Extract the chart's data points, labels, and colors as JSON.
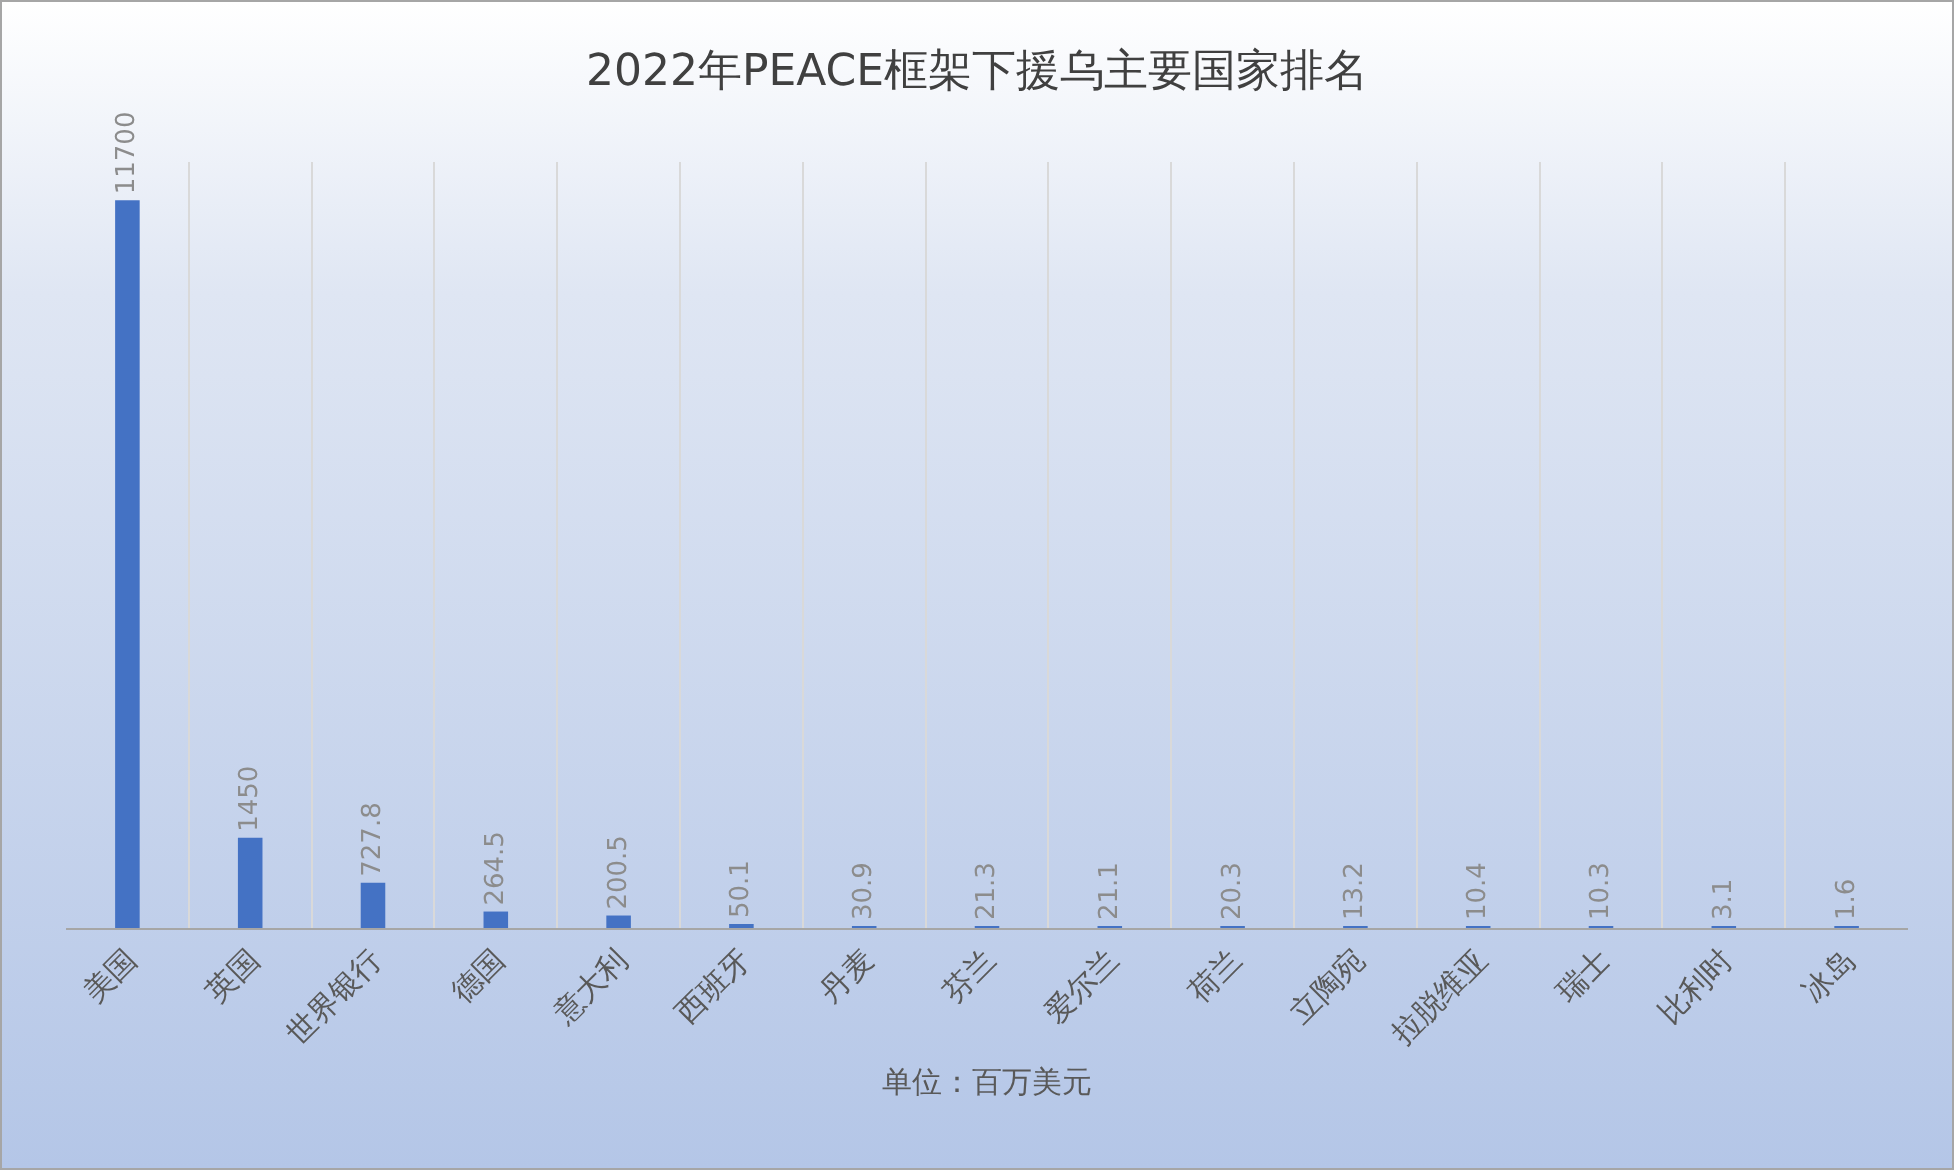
{
  "chart_data": {
    "type": "bar",
    "title": "2022年PEACE框架下援乌主要国家排名",
    "xlabel": "单位：百万美元",
    "categories": [
      "美国",
      "英国",
      "世界银行",
      "德国",
      "意大利",
      "西班牙",
      "丹麦",
      "芬兰",
      "爱尔兰",
      "荷兰",
      "立陶宛",
      "拉脱维亚",
      "瑞士",
      "比利时",
      "冰岛"
    ],
    "values": [
      11700,
      1450,
      727.8,
      264.5,
      200.5,
      50.1,
      30.9,
      21.3,
      21.1,
      20.3,
      13.2,
      10.4,
      10.3,
      3.1,
      1.6
    ],
    "color": "#4472c4",
    "data_labels": true,
    "grid": "x",
    "legend": false
  }
}
